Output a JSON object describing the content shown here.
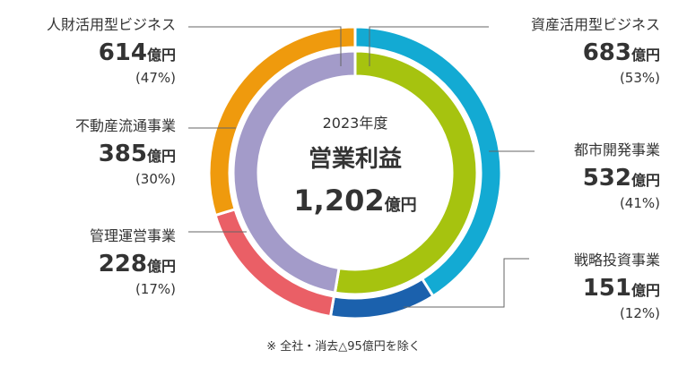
{
  "chart_data": {
    "type": "pie",
    "style": "nested-donut",
    "center": {
      "year": "2023年度",
      "title": "営業利益",
      "total_value": "1,202",
      "total_unit": "億円"
    },
    "unit": "億円",
    "inner_ring": [
      {
        "name": "資産活用型ビジネス",
        "value": 683,
        "percent": "(53%)",
        "color": "#a6c30f"
      },
      {
        "name": "人財活用型ビジネス",
        "value": 614,
        "percent": "(47%)",
        "color": "#a39bc9"
      }
    ],
    "outer_ring": [
      {
        "name": "都市開発事業",
        "value": 532,
        "percent": "(41%)",
        "color": "#13aad3"
      },
      {
        "name": "戦略投資事業",
        "value": 151,
        "percent": "(12%)",
        "color": "#1b61ad"
      },
      {
        "name": "管理運営事業",
        "value": 228,
        "percent": "(17%)",
        "color": "#ea5f66"
      },
      {
        "name": "不動産流通事業",
        "value": 385,
        "percent": "(30%)",
        "color": "#ef9a0d"
      }
    ],
    "footnote": "※ 全社・消去△95億円を除く"
  }
}
